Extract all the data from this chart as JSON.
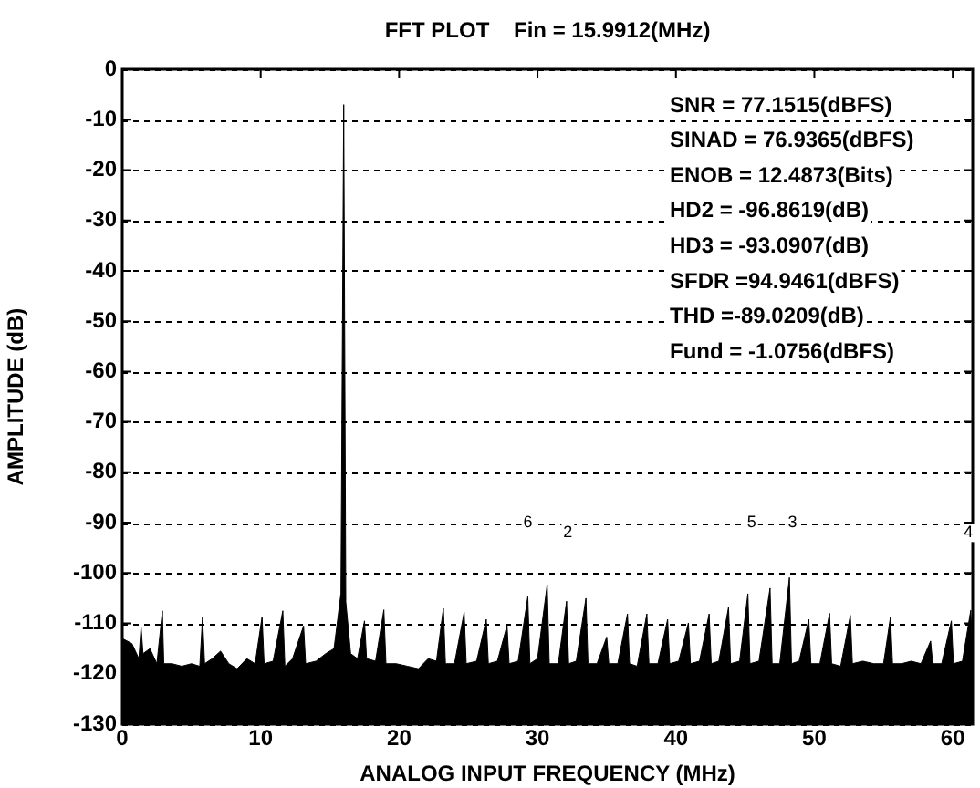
{
  "chart_data": {
    "type": "area",
    "title": "FFT PLOT    Fin = 15.9912(MHz)",
    "xlabel": "ANALOG INPUT FREQUENCY (MHz)",
    "ylabel": "AMPLITUDE (dB)",
    "xlim": [
      0,
      61.44
    ],
    "xticks": [
      0,
      10,
      20,
      30,
      40,
      50,
      60
    ],
    "ylim": [
      -130,
      0
    ],
    "yticks": [
      0,
      -10,
      -20,
      -30,
      -40,
      -50,
      -60,
      -70,
      -80,
      -90,
      -100,
      -110,
      -120,
      -130
    ],
    "grid": "y",
    "legend": false,
    "series": [
      {
        "color": "#000000",
        "x": [
          0,
          0,
          0.7,
          1.2,
          1.36,
          1.5,
          2.0,
          2.5,
          2.9,
          3.0,
          3.6,
          4.3,
          5.0,
          5.6,
          5.8,
          5.95,
          6.5,
          7.1,
          7.7,
          8.3,
          9.0,
          9.6,
          10.1,
          10.25,
          10.9,
          11.6,
          11.75,
          12.3,
          13.1,
          13.25,
          14.0,
          14.7,
          15.3,
          15.8,
          16.0,
          16.15,
          16.5,
          17.0,
          17.5,
          17.65,
          18.3,
          18.9,
          19.05,
          19.8,
          20.6,
          21.4,
          22.1,
          22.7,
          23.2,
          23.35,
          24.0,
          24.7,
          24.85,
          25.6,
          26.3,
          26.45,
          27.1,
          27.8,
          27.95,
          28.6,
          29.3,
          29.45,
          30.0,
          30.7,
          30.85,
          31.5,
          32.1,
          32.25,
          32.8,
          33.5,
          33.65,
          34.3,
          35.0,
          35.15,
          35.8,
          36.5,
          36.65,
          37.2,
          37.9,
          38.05,
          38.7,
          39.4,
          39.55,
          40.2,
          40.9,
          41.05,
          41.7,
          42.4,
          42.55,
          43.1,
          43.8,
          43.95,
          44.6,
          45.2,
          45.35,
          46.0,
          46.8,
          46.95,
          47.5,
          48.2,
          48.35,
          48.9,
          49.6,
          49.75,
          50.4,
          51.1,
          51.25,
          51.9,
          52.6,
          52.75,
          53.5,
          54.3,
          55.0,
          55.5,
          55.65,
          56.3,
          57.0,
          57.7,
          58.4,
          58.55,
          59.2,
          59.9,
          60.05,
          60.7,
          61.3,
          61.44,
          61.44
        ],
        "values": [
          -130,
          -113,
          -114,
          -117,
          -110.7,
          -116,
          -115,
          -118,
          -107.5,
          -118,
          -118,
          -118.5,
          -118,
          -118.5,
          -108.7,
          -118,
          -117,
          -115.5,
          -118,
          -119,
          -117,
          -118,
          -108.7,
          -118,
          -117.5,
          -107.5,
          -118.5,
          -117,
          -110.5,
          -118,
          -117.5,
          -116,
          -115,
          -104,
          -7,
          -105.7,
          -116,
          -117,
          -109.5,
          -117,
          -117.5,
          -107.3,
          -118,
          -118,
          -118.5,
          -119,
          -117,
          -117.5,
          -107,
          -118,
          -118,
          -107.8,
          -118,
          -117.5,
          -109.2,
          -118,
          -117.5,
          -110.4,
          -118,
          -117.5,
          -104.7,
          -118,
          -117,
          -102.3,
          -118,
          -118,
          -105.6,
          -118,
          -117.5,
          -105,
          -118,
          -118,
          -112.7,
          -118,
          -118,
          -108.1,
          -118,
          -118.5,
          -108.1,
          -118,
          -118,
          -109.2,
          -118,
          -117.5,
          -109.9,
          -118,
          -117.5,
          -108.1,
          -118,
          -117.5,
          -106.8,
          -118,
          -117.5,
          -104.1,
          -118,
          -117.5,
          -103,
          -118,
          -118,
          -100.9,
          -118,
          -117.5,
          -109.2,
          -118,
          -118,
          -108,
          -118,
          -118.5,
          -108.4,
          -118,
          -117.5,
          -118,
          -118,
          -108.7,
          -118,
          -118,
          -117.5,
          -118,
          -113.5,
          -118,
          -118,
          -109.5,
          -118,
          -117.5,
          -107.4,
          -117,
          -130
        ]
      }
    ],
    "annotations": [
      "SNR = 77.1515(dBFS)",
      "SINAD = 76.9365(dBFS)",
      "ENOB = 12.4873(Bits)",
      "HD2 = -96.8619(dB)",
      "HD3 = -93.0907(dB)",
      "SFDR =94.9461(dBFS)",
      "THD =-89.0209(dB)",
      "Fund = -1.0756(dBFS)",
      "6",
      "2",
      "5",
      "3",
      "4"
    ]
  }
}
